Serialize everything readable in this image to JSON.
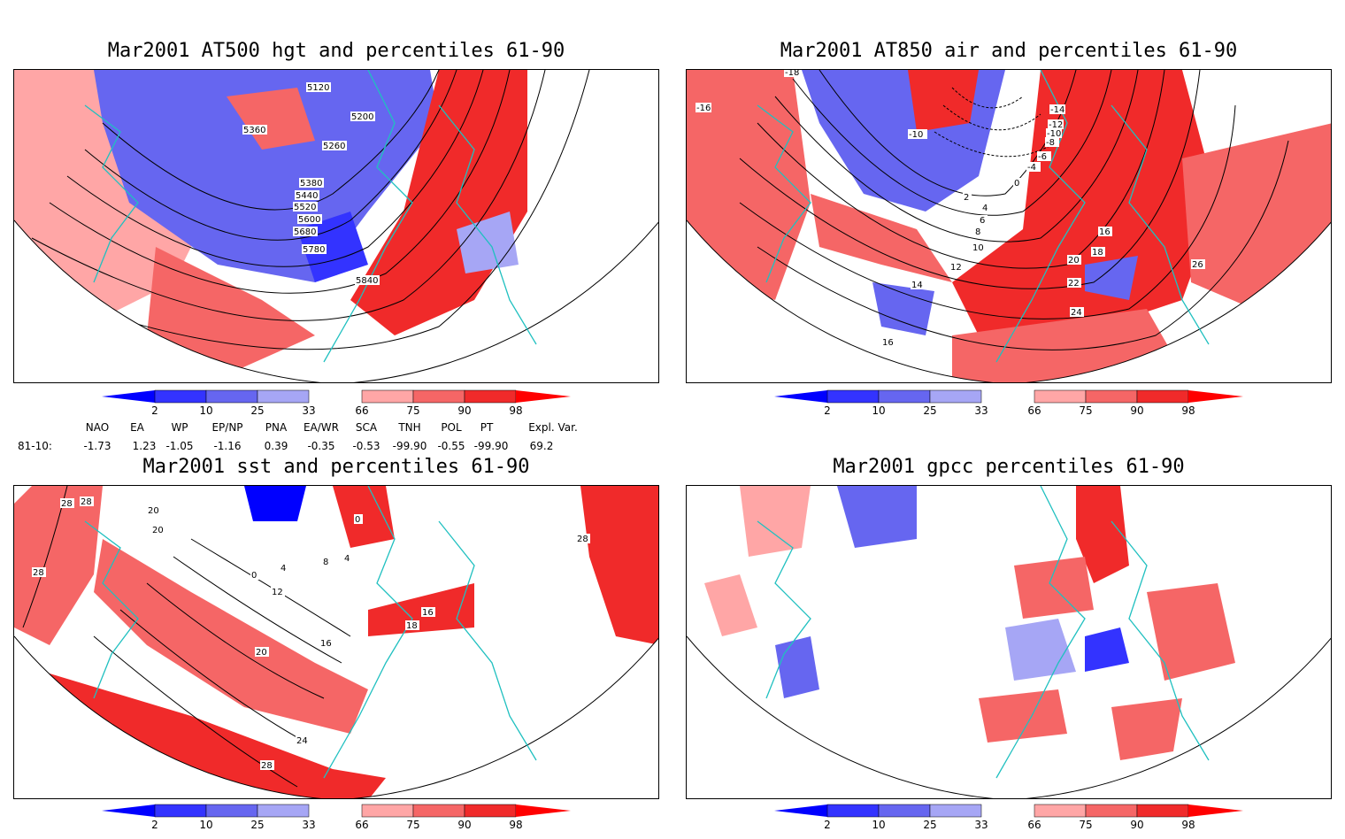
{
  "panels": [
    {
      "id": "hgt",
      "title": "Mar2001 AT500 hgt and percentiles 61-90",
      "contour_labels": [
        "5120",
        "5200",
        "5260",
        "5360",
        "5380",
        "5440",
        "5520",
        "5600",
        "5680",
        "5780",
        "5840"
      ]
    },
    {
      "id": "air",
      "title": "Mar2001 AT850 air and percentiles 61-90",
      "contour_labels": [
        "-18",
        "-16",
        "-14",
        "-12",
        "-10",
        "-8",
        "-6",
        "-4",
        "0",
        "2",
        "4",
        "6",
        "8",
        "10",
        "12",
        "14",
        "16",
        "18",
        "20",
        "22",
        "24",
        "26",
        "-10",
        "16"
      ]
    },
    {
      "id": "sst",
      "title": "Mar2001 sst and percentiles 61-90",
      "contour_labels": [
        "28",
        "28",
        "20",
        "20",
        "28",
        "0",
        "4",
        "8",
        "4",
        "0",
        "12",
        "16",
        "16",
        "18",
        "20",
        "24",
        "28",
        "28"
      ]
    },
    {
      "id": "gpcc",
      "title": "Mar2001 gpcc percentiles 61-90",
      "contour_labels": []
    }
  ],
  "colorbar": {
    "labels": [
      "2",
      "10",
      "25",
      "33",
      "66",
      "75",
      "90",
      "98"
    ],
    "colors": {
      "below_2": "#0000ff",
      "c2_10": "#3333ff",
      "c10_25": "#6666f0",
      "c25_33": "#a6a6f5",
      "c66_75": "#ffa6a6",
      "c75_90": "#f56666",
      "c90_98": "#f02a2a",
      "above_98": "#ff0000"
    }
  },
  "indices": {
    "headers": [
      "NAO",
      "EA",
      "WP",
      "EP/NP",
      "PNA",
      "EA/WR",
      "SCA",
      "TNH",
      "POL",
      "PT",
      "Expl. Var."
    ],
    "row_label": "81-10:",
    "values": [
      "-1.73",
      "1.23",
      "-1.05",
      "-1.16",
      "0.39",
      "-0.35",
      "-0.53",
      "-99.90",
      "-0.55",
      "-99.90",
      "69.2"
    ]
  },
  "colors": {
    "coast": "#20c0c0",
    "contour": "#000000",
    "warm": "#ff3030",
    "cold": "#4040ff"
  }
}
